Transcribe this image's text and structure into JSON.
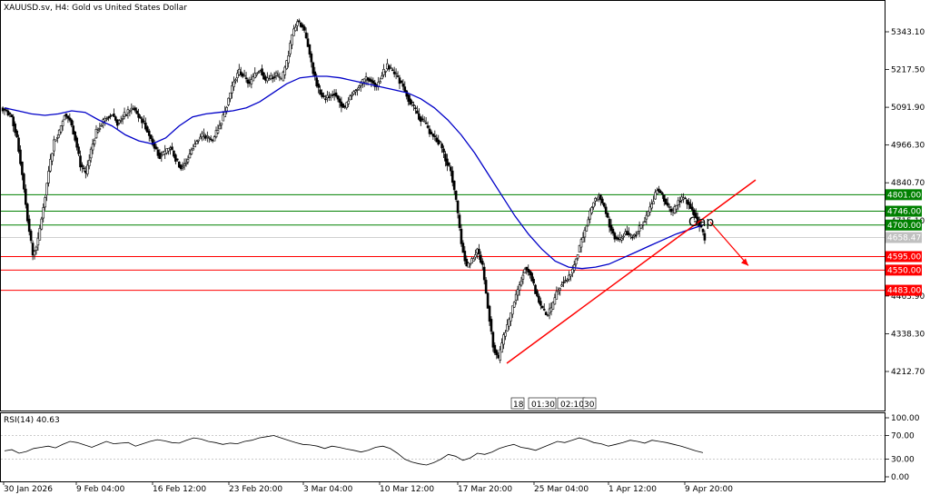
{
  "chart_data": {
    "type": "candlestick",
    "title": "XAUUSD.sv, H4:  Gold vs United States Dollar",
    "price_axis": {
      "ticks": [
        "5343.10",
        "5217.50",
        "5091.90",
        "4966.30",
        "4840.70",
        "4715.10",
        "4463.90",
        "4338.30",
        "4212.70"
      ],
      "tick_values": [
        5343.1,
        5217.5,
        5091.9,
        4966.3,
        4840.7,
        4715.1,
        4463.9,
        4338.3,
        4212.7
      ],
      "range": [
        4100,
        5400
      ]
    },
    "time_axis": {
      "labels": [
        "30 Jan 2026",
        "9 Feb 04:00",
        "16 Feb 12:00",
        "23 Feb 20:00",
        "3 Mar 04:00",
        "10 Mar 12:00",
        "17 Mar 20:00",
        "25 Mar 04:00",
        "1 Apr 12:00",
        "9 Apr 20:00"
      ]
    },
    "current_price": {
      "label": "4658.47",
      "value": 4658.47
    },
    "support_resistance": [
      {
        "label": "4801.00",
        "value": 4801.0,
        "color": "#008000"
      },
      {
        "label": "4746.00",
        "value": 4746.0,
        "color": "#008000"
      },
      {
        "label": "4700.00",
        "value": 4700.0,
        "color": "#008000"
      },
      {
        "label": "4595.00",
        "value": 4595.0,
        "color": "#ff0000"
      },
      {
        "label": "4550.00",
        "value": 4550.0,
        "color": "#ff0000"
      },
      {
        "label": "4483.00",
        "value": 4483.0,
        "color": "#ff0000"
      }
    ],
    "annotations": {
      "gap_label": "Gap",
      "tooltip_boxes": [
        "18",
        "01:30",
        "02:10",
        "30"
      ]
    },
    "ohlc_series": [
      5080,
      5060,
      4990,
      4870,
      4720,
      4600,
      4650,
      4760,
      4880,
      4980,
      5010,
      5070,
      5050,
      4990,
      4900,
      4870,
      4950,
      5010,
      5040,
      5060,
      5070,
      5040,
      5060,
      5080,
      5090,
      5060,
      5040,
      5000,
      4960,
      4930,
      4940,
      4960,
      4920,
      4890,
      4910,
      4950,
      4980,
      5000,
      4990,
      4980,
      5020,
      5060,
      5120,
      5180,
      5210,
      5190,
      5170,
      5200,
      5220,
      5180,
      5190,
      5200,
      5180,
      5240,
      5330,
      5380,
      5360,
      5300,
      5210,
      5150,
      5120,
      5130,
      5140,
      5110,
      5090,
      5130,
      5150,
      5170,
      5190,
      5180,
      5160,
      5200,
      5230,
      5210,
      5190,
      5160,
      5120,
      5090,
      5060,
      5040,
      5010,
      4990,
      4970,
      4920,
      4880,
      4780,
      4640,
      4560,
      4580,
      4620,
      4560,
      4430,
      4300,
      4250,
      4330,
      4380,
      4450,
      4500,
      4560,
      4540,
      4480,
      4430,
      4400,
      4420,
      4470,
      4510,
      4520,
      4550,
      4610,
      4660,
      4720,
      4780,
      4800,
      4760,
      4700,
      4660,
      4650,
      4680,
      4660,
      4670,
      4700,
      4730,
      4770,
      4820,
      4800,
      4760,
      4740,
      4780,
      4790,
      4770,
      4740,
      4700,
      4658
    ],
    "moving_average": {
      "color": "#0000c8",
      "values": [
        5090,
        5080,
        5070,
        5065,
        5070,
        5080,
        5075,
        5050,
        5030,
        5000,
        4980,
        4970,
        4990,
        5030,
        5060,
        5070,
        5075,
        5080,
        5090,
        5110,
        5140,
        5170,
        5190,
        5195,
        5195,
        5190,
        5180,
        5170,
        5160,
        5150,
        5140,
        5120,
        5090,
        5050,
        5000,
        4940,
        4870,
        4800,
        4730,
        4670,
        4620,
        4580,
        4560,
        4555,
        4560,
        4570,
        4590,
        4610,
        4630,
        4650,
        4670,
        4685,
        4700
      ]
    },
    "trendline": {
      "from_value": 4240,
      "to_value": 4850,
      "color": "#ff0000"
    },
    "projection_arrow": {
      "from_value": 4710,
      "to_value": 4565,
      "color": "#ff0000"
    },
    "rsi": {
      "label": "RSI(14) 40.63",
      "ticks": [
        "100.00",
        "70.00",
        "30.00",
        "0.00"
      ],
      "tick_values": [
        100,
        70,
        30,
        0
      ],
      "values": [
        44,
        46,
        40,
        43,
        48,
        50,
        52,
        49,
        55,
        60,
        58,
        54,
        50,
        55,
        60,
        56,
        57,
        58,
        52,
        56,
        60,
        63,
        61,
        58,
        57,
        62,
        66,
        64,
        60,
        58,
        55,
        57,
        56,
        60,
        62,
        66,
        68,
        70,
        66,
        62,
        58,
        55,
        54,
        52,
        48,
        52,
        50,
        47,
        45,
        42,
        45,
        50,
        52,
        48,
        40,
        30,
        25,
        22,
        20,
        24,
        30,
        38,
        35,
        28,
        32,
        40,
        38,
        42,
        48,
        52,
        55,
        50,
        48,
        45,
        50,
        55,
        60,
        58,
        62,
        66,
        63,
        58,
        56,
        52,
        55,
        58,
        62,
        60,
        57,
        62,
        60,
        58,
        55,
        52,
        48,
        44,
        41
      ]
    }
  }
}
